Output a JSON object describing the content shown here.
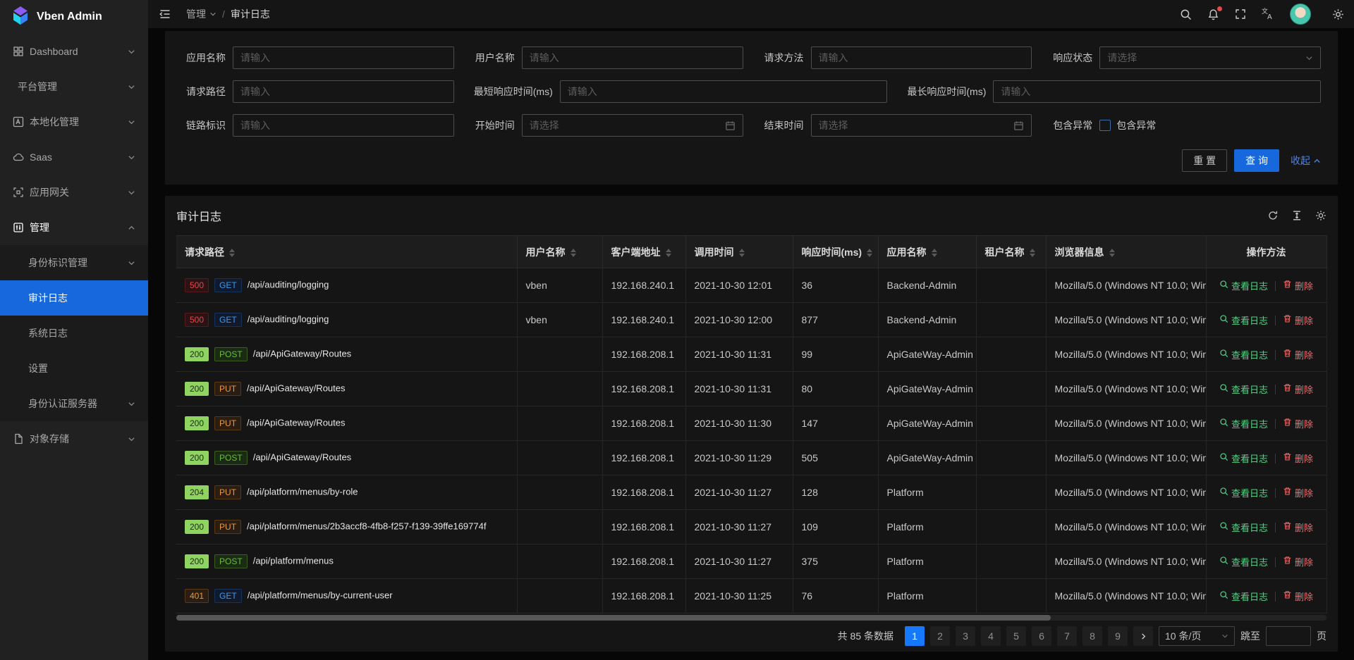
{
  "app": {
    "name": "Vben Admin",
    "logo_icon": "vben-logo-icon"
  },
  "breadcrumb": {
    "level1": "管理",
    "level2": "审计日志"
  },
  "topbar": {
    "icons": [
      "search-icon",
      "bell-icon",
      "fullscreen-icon",
      "translate-icon",
      "avatar",
      "gear-icon"
    ],
    "bell_has_badge": true
  },
  "sidebar": {
    "items": [
      {
        "label": "Dashboard",
        "icon": "dashboard-icon",
        "chevron": "down"
      },
      {
        "label": "平台管理",
        "icon": null,
        "chevron": "down"
      },
      {
        "label": "本地化管理",
        "icon": "localization-icon",
        "chevron": "down"
      },
      {
        "label": "Saas",
        "icon": "saas-icon",
        "chevron": "down"
      },
      {
        "label": "应用网关",
        "icon": "gateway-icon",
        "chevron": "down"
      },
      {
        "label": "管理",
        "icon": "manage-icon",
        "chevron": "up",
        "expanded": true,
        "children": [
          {
            "label": "身份标识管理",
            "chevron": "down"
          },
          {
            "label": "审计日志",
            "active": true
          },
          {
            "label": "系统日志"
          },
          {
            "label": "设置"
          },
          {
            "label": "身份认证服务器",
            "chevron": "down"
          }
        ]
      },
      {
        "label": "对象存储",
        "icon": "storage-icon",
        "chevron": "down"
      }
    ]
  },
  "filter": {
    "rows": [
      [
        {
          "label": "应用名称",
          "placeholder": "请输入",
          "type": "input"
        },
        {
          "label": "用户名称",
          "placeholder": "请输入",
          "type": "input"
        },
        {
          "label": "请求方法",
          "placeholder": "请输入",
          "type": "input"
        },
        {
          "label": "响应状态",
          "placeholder": "请选择",
          "type": "select"
        }
      ],
      [
        {
          "label": "请求路径",
          "placeholder": "请输入",
          "type": "input"
        },
        {
          "label": "最短响应时间(ms)",
          "placeholder": "请输入",
          "type": "input",
          "wide": true
        },
        {
          "label": "最长响应时间(ms)",
          "placeholder": "请输入",
          "type": "input",
          "wide": true
        }
      ],
      [
        {
          "label": "链路标识",
          "placeholder": "请输入",
          "type": "input"
        },
        {
          "label": "开始时间",
          "placeholder": "请选择",
          "type": "date"
        },
        {
          "label": "结束时间",
          "placeholder": "请选择",
          "type": "date"
        },
        {
          "label": "包含异常",
          "checkbox_label": "包含异常",
          "type": "checkbox",
          "checked": false
        }
      ]
    ],
    "reset_label": "重 置",
    "search_label": "查 询",
    "collapse_label": "收起"
  },
  "panel": {
    "title": "审计日志",
    "toolbar_icons": [
      "refresh-icon",
      "row-height-icon",
      "settings-icon"
    ]
  },
  "table": {
    "columns": [
      {
        "label": "请求路径",
        "sortable": true
      },
      {
        "label": "用户名称",
        "sortable": true
      },
      {
        "label": "客户端地址",
        "sortable": true
      },
      {
        "label": "调用时间",
        "sortable": true
      },
      {
        "label": "响应时间(ms)",
        "sortable": true
      },
      {
        "label": "应用名称",
        "sortable": true
      },
      {
        "label": "租户名称",
        "sortable": true
      },
      {
        "label": "浏览器信息",
        "sortable": true
      },
      {
        "label": "操作方法",
        "sortable": false
      }
    ],
    "rows": [
      {
        "status": "500",
        "status_variant": "error",
        "method": "GET",
        "method_variant": "get",
        "path": "/api/auditing/logging",
        "user": "vben",
        "client": "192.168.240.1",
        "time": "2021-10-30 12:01",
        "elapsed": "36",
        "app": "Backend-Admin",
        "tenant": "",
        "browser": "Mozilla/5.0 (Windows NT 10.0; Win"
      },
      {
        "status": "500",
        "status_variant": "error",
        "method": "GET",
        "method_variant": "get",
        "path": "/api/auditing/logging",
        "user": "vben",
        "client": "192.168.240.1",
        "time": "2021-10-30 12:00",
        "elapsed": "877",
        "app": "Backend-Admin",
        "tenant": "",
        "browser": "Mozilla/5.0 (Windows NT 10.0; Win"
      },
      {
        "status": "200",
        "status_variant": "ok",
        "method": "POST",
        "method_variant": "post",
        "path": "/api/ApiGateway/Routes",
        "user": "",
        "client": "192.168.208.1",
        "time": "2021-10-30 11:31",
        "elapsed": "99",
        "app": "ApiGateWay-Admin",
        "tenant": "",
        "browser": "Mozilla/5.0 (Windows NT 10.0; Win"
      },
      {
        "status": "200",
        "status_variant": "ok",
        "method": "PUT",
        "method_variant": "put",
        "path": "/api/ApiGateway/Routes",
        "user": "",
        "client": "192.168.208.1",
        "time": "2021-10-30 11:31",
        "elapsed": "80",
        "app": "ApiGateWay-Admin",
        "tenant": "",
        "browser": "Mozilla/5.0 (Windows NT 10.0; Win"
      },
      {
        "status": "200",
        "status_variant": "ok",
        "method": "PUT",
        "method_variant": "put",
        "path": "/api/ApiGateway/Routes",
        "user": "",
        "client": "192.168.208.1",
        "time": "2021-10-30 11:30",
        "elapsed": "147",
        "app": "ApiGateWay-Admin",
        "tenant": "",
        "browser": "Mozilla/5.0 (Windows NT 10.0; Win"
      },
      {
        "status": "200",
        "status_variant": "ok",
        "method": "POST",
        "method_variant": "post",
        "path": "/api/ApiGateway/Routes",
        "user": "",
        "client": "192.168.208.1",
        "time": "2021-10-30 11:29",
        "elapsed": "505",
        "app": "ApiGateWay-Admin",
        "tenant": "",
        "browser": "Mozilla/5.0 (Windows NT 10.0; Win"
      },
      {
        "status": "204",
        "status_variant": "ok",
        "method": "PUT",
        "method_variant": "put",
        "path": "/api/platform/menus/by-role",
        "user": "",
        "client": "192.168.208.1",
        "time": "2021-10-30 11:27",
        "elapsed": "128",
        "app": "Platform",
        "tenant": "",
        "browser": "Mozilla/5.0 (Windows NT 10.0; Win"
      },
      {
        "status": "200",
        "status_variant": "ok",
        "method": "PUT",
        "method_variant": "put",
        "path": "/api/platform/menus/2b3accf8-4fb8-f257-f139-39ffe169774f",
        "user": "",
        "client": "192.168.208.1",
        "time": "2021-10-30 11:27",
        "elapsed": "109",
        "app": "Platform",
        "tenant": "",
        "browser": "Mozilla/5.0 (Windows NT 10.0; Win"
      },
      {
        "status": "200",
        "status_variant": "ok",
        "method": "POST",
        "method_variant": "post",
        "path": "/api/platform/menus",
        "user": "",
        "client": "192.168.208.1",
        "time": "2021-10-30 11:27",
        "elapsed": "375",
        "app": "Platform",
        "tenant": "",
        "browser": "Mozilla/5.0 (Windows NT 10.0; Win"
      },
      {
        "status": "401",
        "status_variant": "warn",
        "method": "GET",
        "method_variant": "get",
        "path": "/api/platform/menus/by-current-user",
        "user": "",
        "client": "192.168.208.1",
        "time": "2021-10-30 11:25",
        "elapsed": "76",
        "app": "Platform",
        "tenant": "",
        "browser": "Mozilla/5.0 (Windows NT 10.0; Win"
      }
    ],
    "actions": {
      "view": "查看日志",
      "view_icon": "view-search-icon",
      "delete": "删除",
      "delete_icon": "trash-icon"
    }
  },
  "pagination": {
    "total_text": "共 85 条数据",
    "pages": [
      "1",
      "2",
      "3",
      "4",
      "5",
      "6",
      "7",
      "8",
      "9"
    ],
    "active_page": "1",
    "next_icon": "chevron-right-icon",
    "page_size_value": "10 条/页",
    "jump_prefix": "跳至",
    "jump_value": "",
    "jump_suffix": "页"
  },
  "colors": {
    "accent": "#1668dc",
    "page_active": "#1677ff",
    "status_error": "#e84749",
    "status_ok_bg": "#8fd460",
    "status_warn": "#e89a3c",
    "method_get": "#3c9ae8",
    "method_post": "#6abe39",
    "method_put": "#e89a3c",
    "action_view": "#55d187",
    "action_delete": "#ed6f6f",
    "sidebar_bg": "#212121",
    "card_bg": "#151515"
  }
}
